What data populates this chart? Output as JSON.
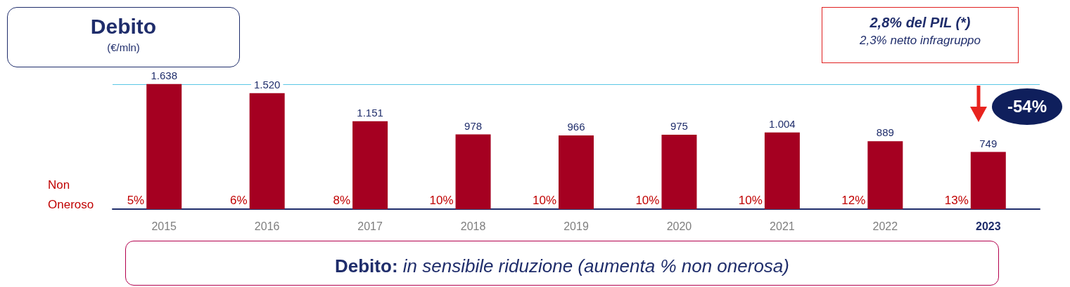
{
  "chart_data": {
    "type": "bar",
    "title": "Debito",
    "subtitle": "(€/mln)",
    "categories": [
      "2015",
      "2016",
      "2017",
      "2018",
      "2019",
      "2020",
      "2021",
      "2022",
      "2023"
    ],
    "values": [
      1638,
      1520,
      1151,
      978,
      966,
      975,
      1004,
      889,
      749
    ],
    "value_labels": [
      "1.638",
      "1.520",
      "1.151",
      "978",
      "966",
      "975",
      "1.004",
      "889",
      "749"
    ],
    "color": "#a50021",
    "ref_lines": [
      {
        "axis": "y",
        "value": 1638,
        "color": "#5bc8e6"
      }
    ],
    "annotations": [
      "2,8% del PIL (*)",
      "2,3% netto  infragruppo",
      "-54%",
      "Non Oneroso",
      {
        "text": "5%",
        "x": "2015",
        "y": 0
      },
      {
        "text": "6%",
        "x": "2016",
        "y": 0
      },
      {
        "text": "8%",
        "x": "2017",
        "y": 0
      },
      {
        "text": "10%",
        "x": "2018",
        "y": 0
      },
      {
        "text": "10%",
        "x": "2019",
        "y": 0
      },
      {
        "text": "10%",
        "x": "2020",
        "y": 0
      },
      {
        "text": "10%",
        "x": "2021",
        "y": 0
      },
      {
        "text": "12%",
        "x": "2022",
        "y": 0
      },
      {
        "text": "13%",
        "x": "2023",
        "y": 0
      },
      "Debito: in sensibile riduzione (aumenta % non onerosa)"
    ],
    "grid": false
  }
}
